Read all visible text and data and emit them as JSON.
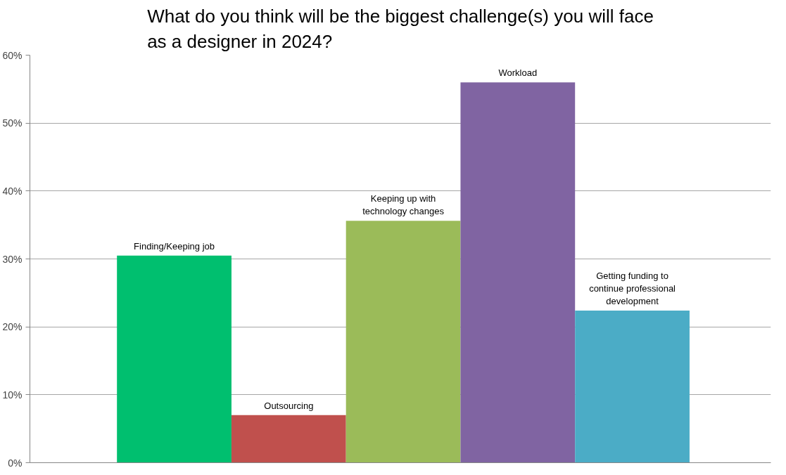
{
  "chart_data": {
    "type": "bar",
    "title": "What do you think will be the biggest challenge(s) you will face as a designer in 2024?",
    "categories": [
      "Finding/Keeping job",
      "Outsourcing",
      "Keeping up with technology changes",
      "Workload",
      "Getting funding to continue professional development"
    ],
    "values": [
      30.5,
      7,
      35.6,
      56,
      22.4
    ],
    "colors": [
      "#00bf6f",
      "#c0504d",
      "#9bbb59",
      "#8064a2",
      "#4bacc6"
    ],
    "ylim": [
      0,
      60
    ],
    "yticks": [
      {
        "value": 0,
        "label": "0%"
      },
      {
        "value": 10,
        "label": "10%"
      },
      {
        "value": 20,
        "label": "20%"
      },
      {
        "value": 30,
        "label": "30%"
      },
      {
        "value": 40,
        "label": "40%"
      },
      {
        "value": 50,
        "label": "50%"
      },
      {
        "value": 60,
        "label": "60%"
      }
    ],
    "grid": "y",
    "tick_labels": "y"
  }
}
